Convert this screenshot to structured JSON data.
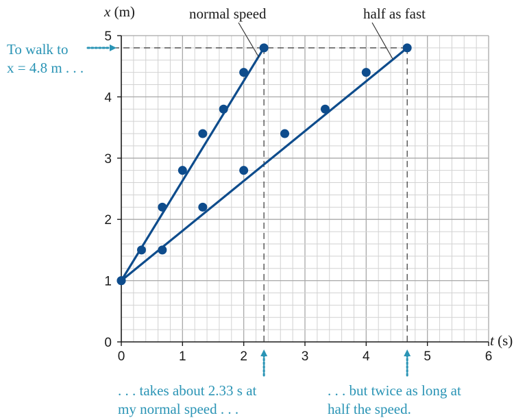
{
  "chart_data": {
    "type": "scatter",
    "xlabel_var": "t",
    "xlabel_unit": " (s)",
    "ylabel_var": "x",
    "ylabel_unit": " (m)",
    "xlim": [
      0,
      6
    ],
    "ylim": [
      0,
      5
    ],
    "xticks": [
      "0",
      "1",
      "2",
      "3",
      "4",
      "5",
      "6"
    ],
    "yticks": [
      "0",
      "1",
      "2",
      "3",
      "4",
      "5"
    ],
    "grid": true,
    "series": [
      {
        "name": "normal speed",
        "points": [
          [
            0,
            1.0
          ],
          [
            0.33,
            1.5
          ],
          [
            0.67,
            2.2
          ],
          [
            1.0,
            2.8
          ],
          [
            1.33,
            3.4
          ],
          [
            1.67,
            3.8
          ],
          [
            2.0,
            4.4
          ],
          [
            2.33,
            4.8
          ]
        ],
        "fit": [
          [
            0,
            1.0
          ],
          [
            2.33,
            4.8
          ]
        ]
      },
      {
        "name": "half as fast",
        "points": [
          [
            0,
            1.0
          ],
          [
            0.67,
            1.5
          ],
          [
            1.33,
            2.2
          ],
          [
            2.0,
            2.8
          ],
          [
            2.67,
            3.4
          ],
          [
            3.33,
            3.8
          ],
          [
            4.0,
            4.4
          ],
          [
            4.67,
            4.8
          ]
        ],
        "fit": [
          [
            0,
            1.0
          ],
          [
            4.67,
            4.8
          ]
        ]
      }
    ],
    "reference_lines": {
      "y": 4.8,
      "x": [
        2.33,
        4.67
      ]
    },
    "annotations": {
      "walk_line1": "To walk to",
      "walk_line2": "x = 4.8 m . . .",
      "takes_line1": ". . . takes about 2.33 s at",
      "takes_line2": "my normal speed . . .",
      "twice_line1": ". . . but twice as long at",
      "twice_line2": "half the speed."
    },
    "colors": {
      "data": "#0e4c8c",
      "annotation": "#2a94b5",
      "text": "#1a1a1a"
    }
  }
}
